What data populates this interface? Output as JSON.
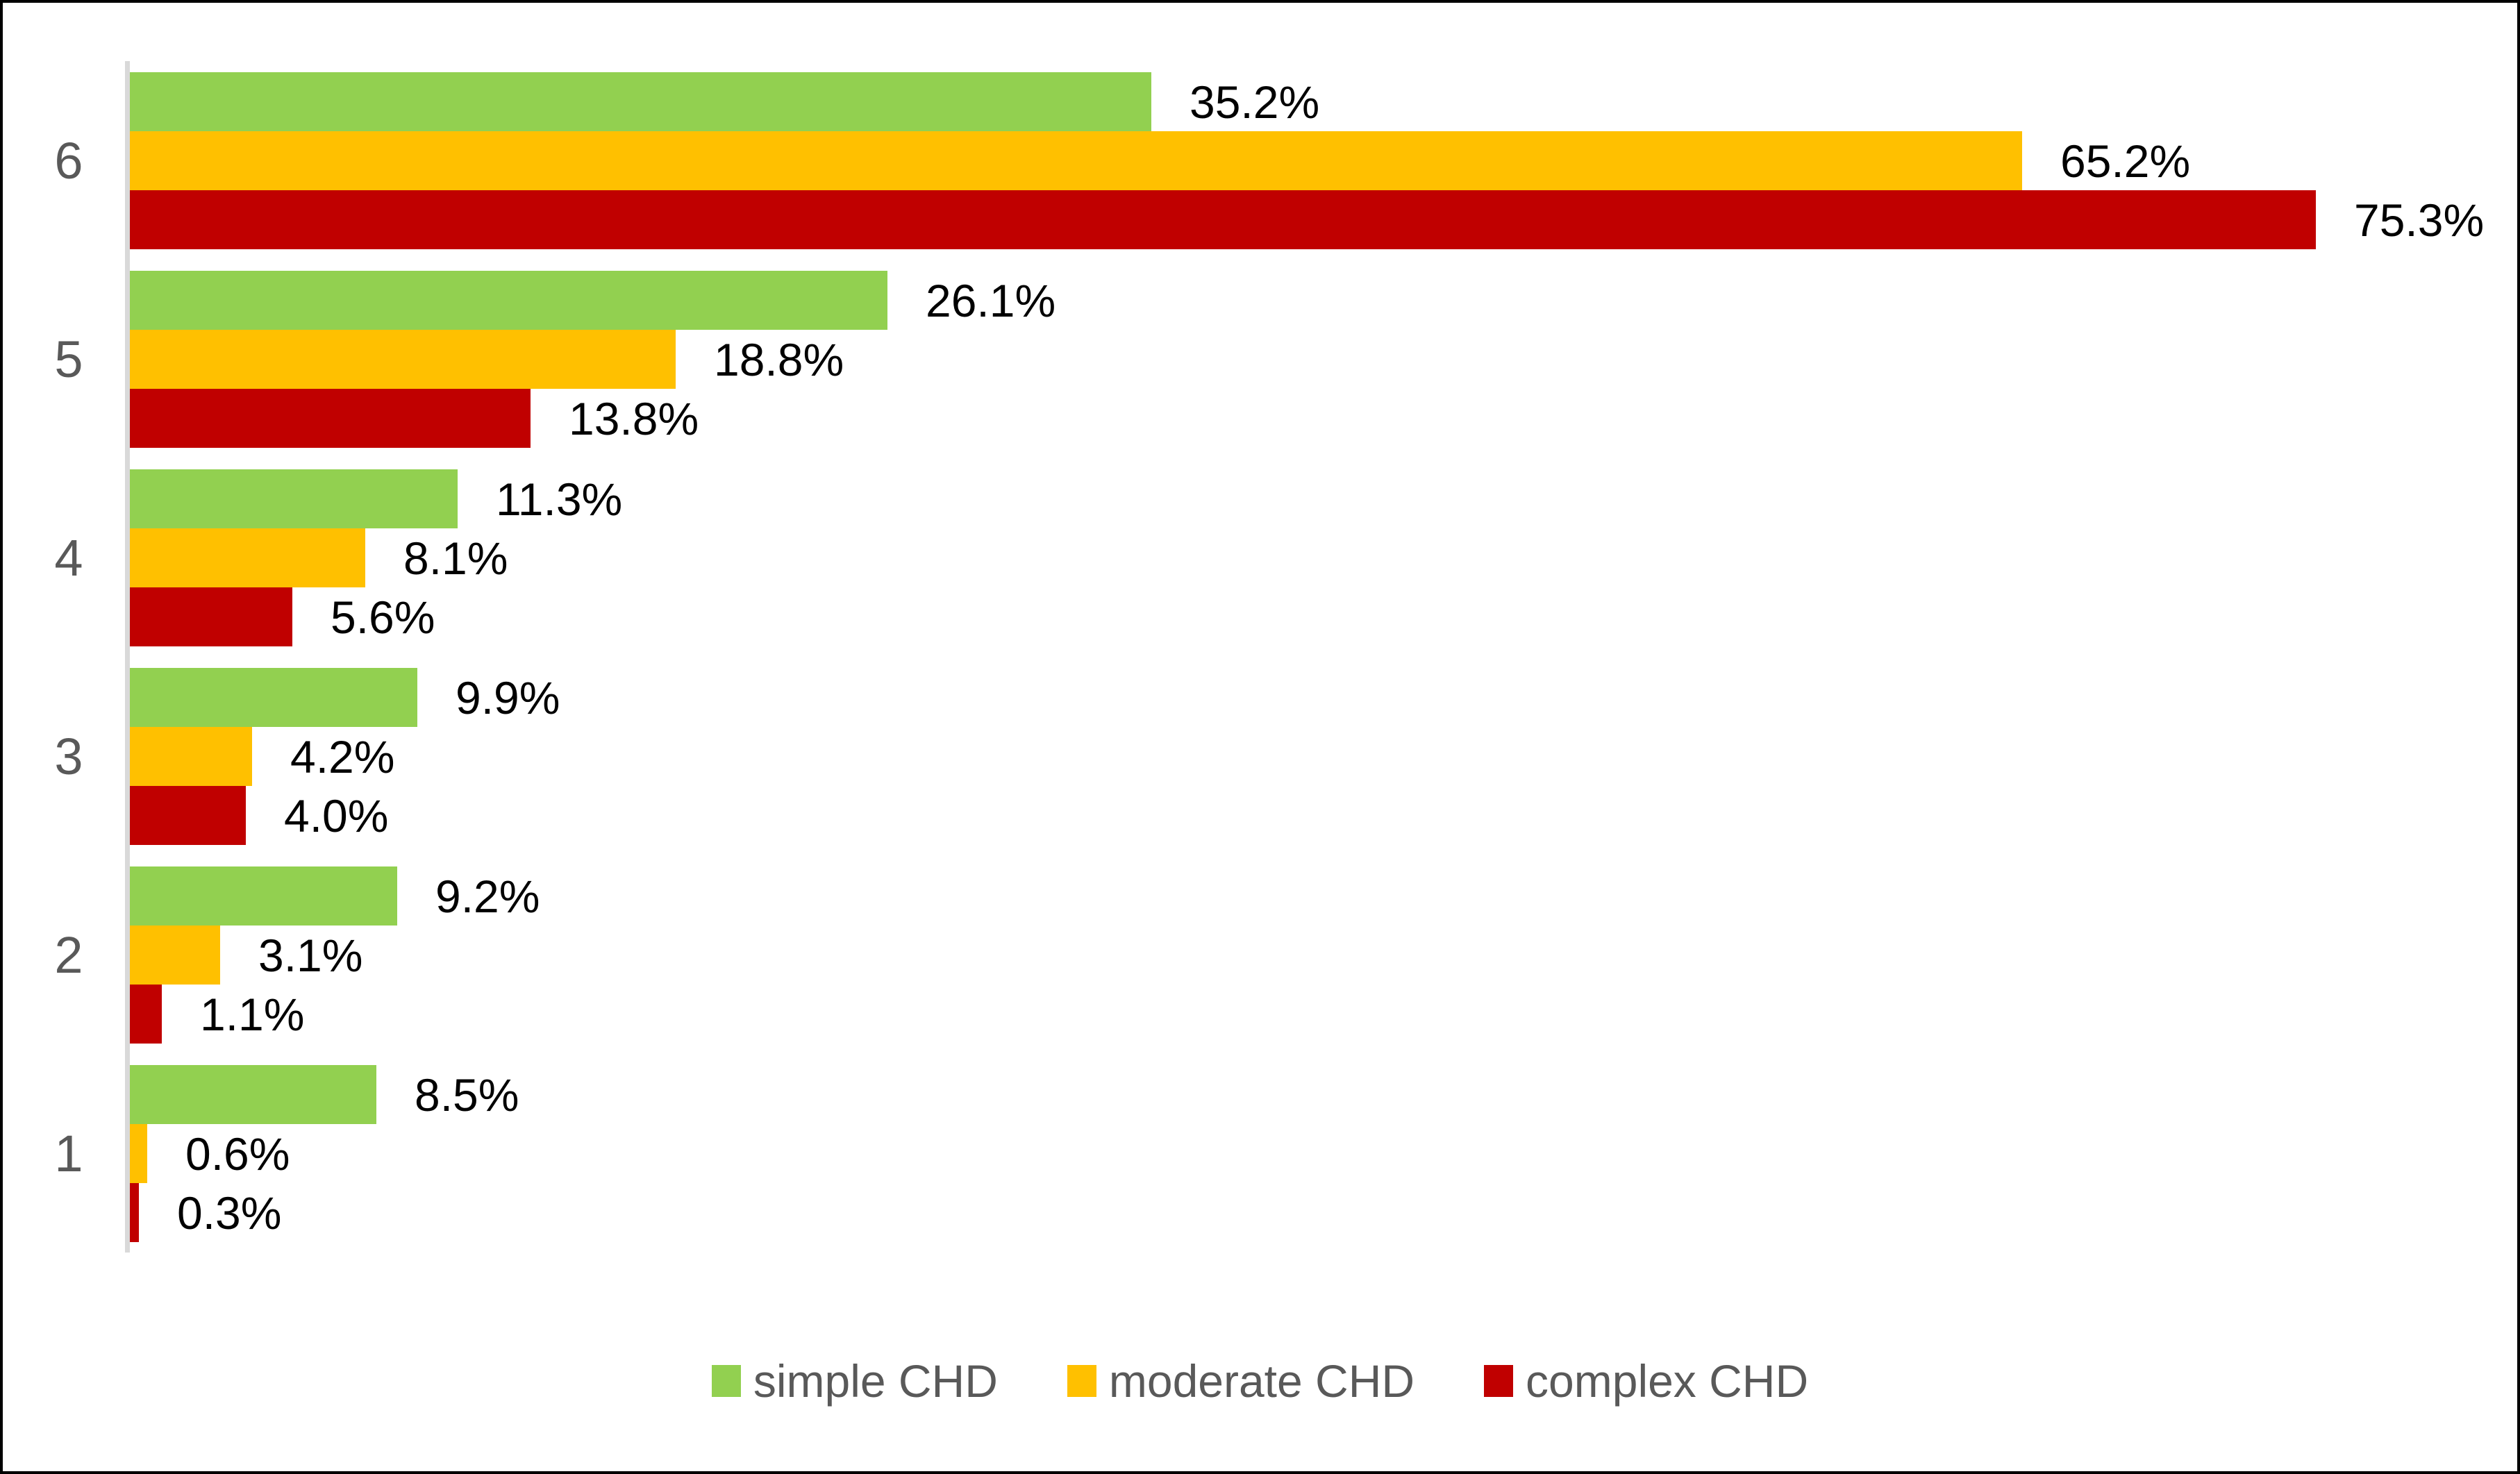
{
  "chart_data": {
    "type": "bar",
    "orientation": "horizontal",
    "title": "",
    "xlabel": "",
    "ylabel": "",
    "categories": [
      "6",
      "5",
      "4",
      "3",
      "2",
      "1"
    ],
    "series": [
      {
        "name": "simple CHD",
        "color": "#92D050",
        "values": [
          35.2,
          26.1,
          11.3,
          9.9,
          9.2,
          8.5
        ],
        "labels": [
          "35.2%",
          "26.1%",
          "11.3%",
          "9.9%",
          "9.2%",
          "8.5%"
        ]
      },
      {
        "name": "moderate CHD",
        "color": "#FFC000",
        "values": [
          65.2,
          18.8,
          8.1,
          4.2,
          3.1,
          0.6
        ],
        "labels": [
          "65.2%",
          "18.8%",
          "8.1%",
          "4.2%",
          "3.1%",
          "0.6%"
        ]
      },
      {
        "name": "complex CHD",
        "color": "#C00000",
        "values": [
          75.3,
          13.8,
          5.6,
          4.0,
          1.1,
          0.3
        ],
        "labels": [
          "75.3%",
          "13.8%",
          "5.6%",
          "4.0%",
          "1.1%",
          "0.3%"
        ]
      }
    ],
    "xlim": [
      0,
      80
    ],
    "grid": false,
    "data_labels_shown": true,
    "legend_position": "bottom",
    "colors": {
      "axis_line": "#D9D9D9",
      "category_text": "#595959",
      "legend_text": "#595959",
      "data_label_text": "#000000",
      "frame_border": "#000000",
      "background": "#FFFFFF"
    }
  }
}
